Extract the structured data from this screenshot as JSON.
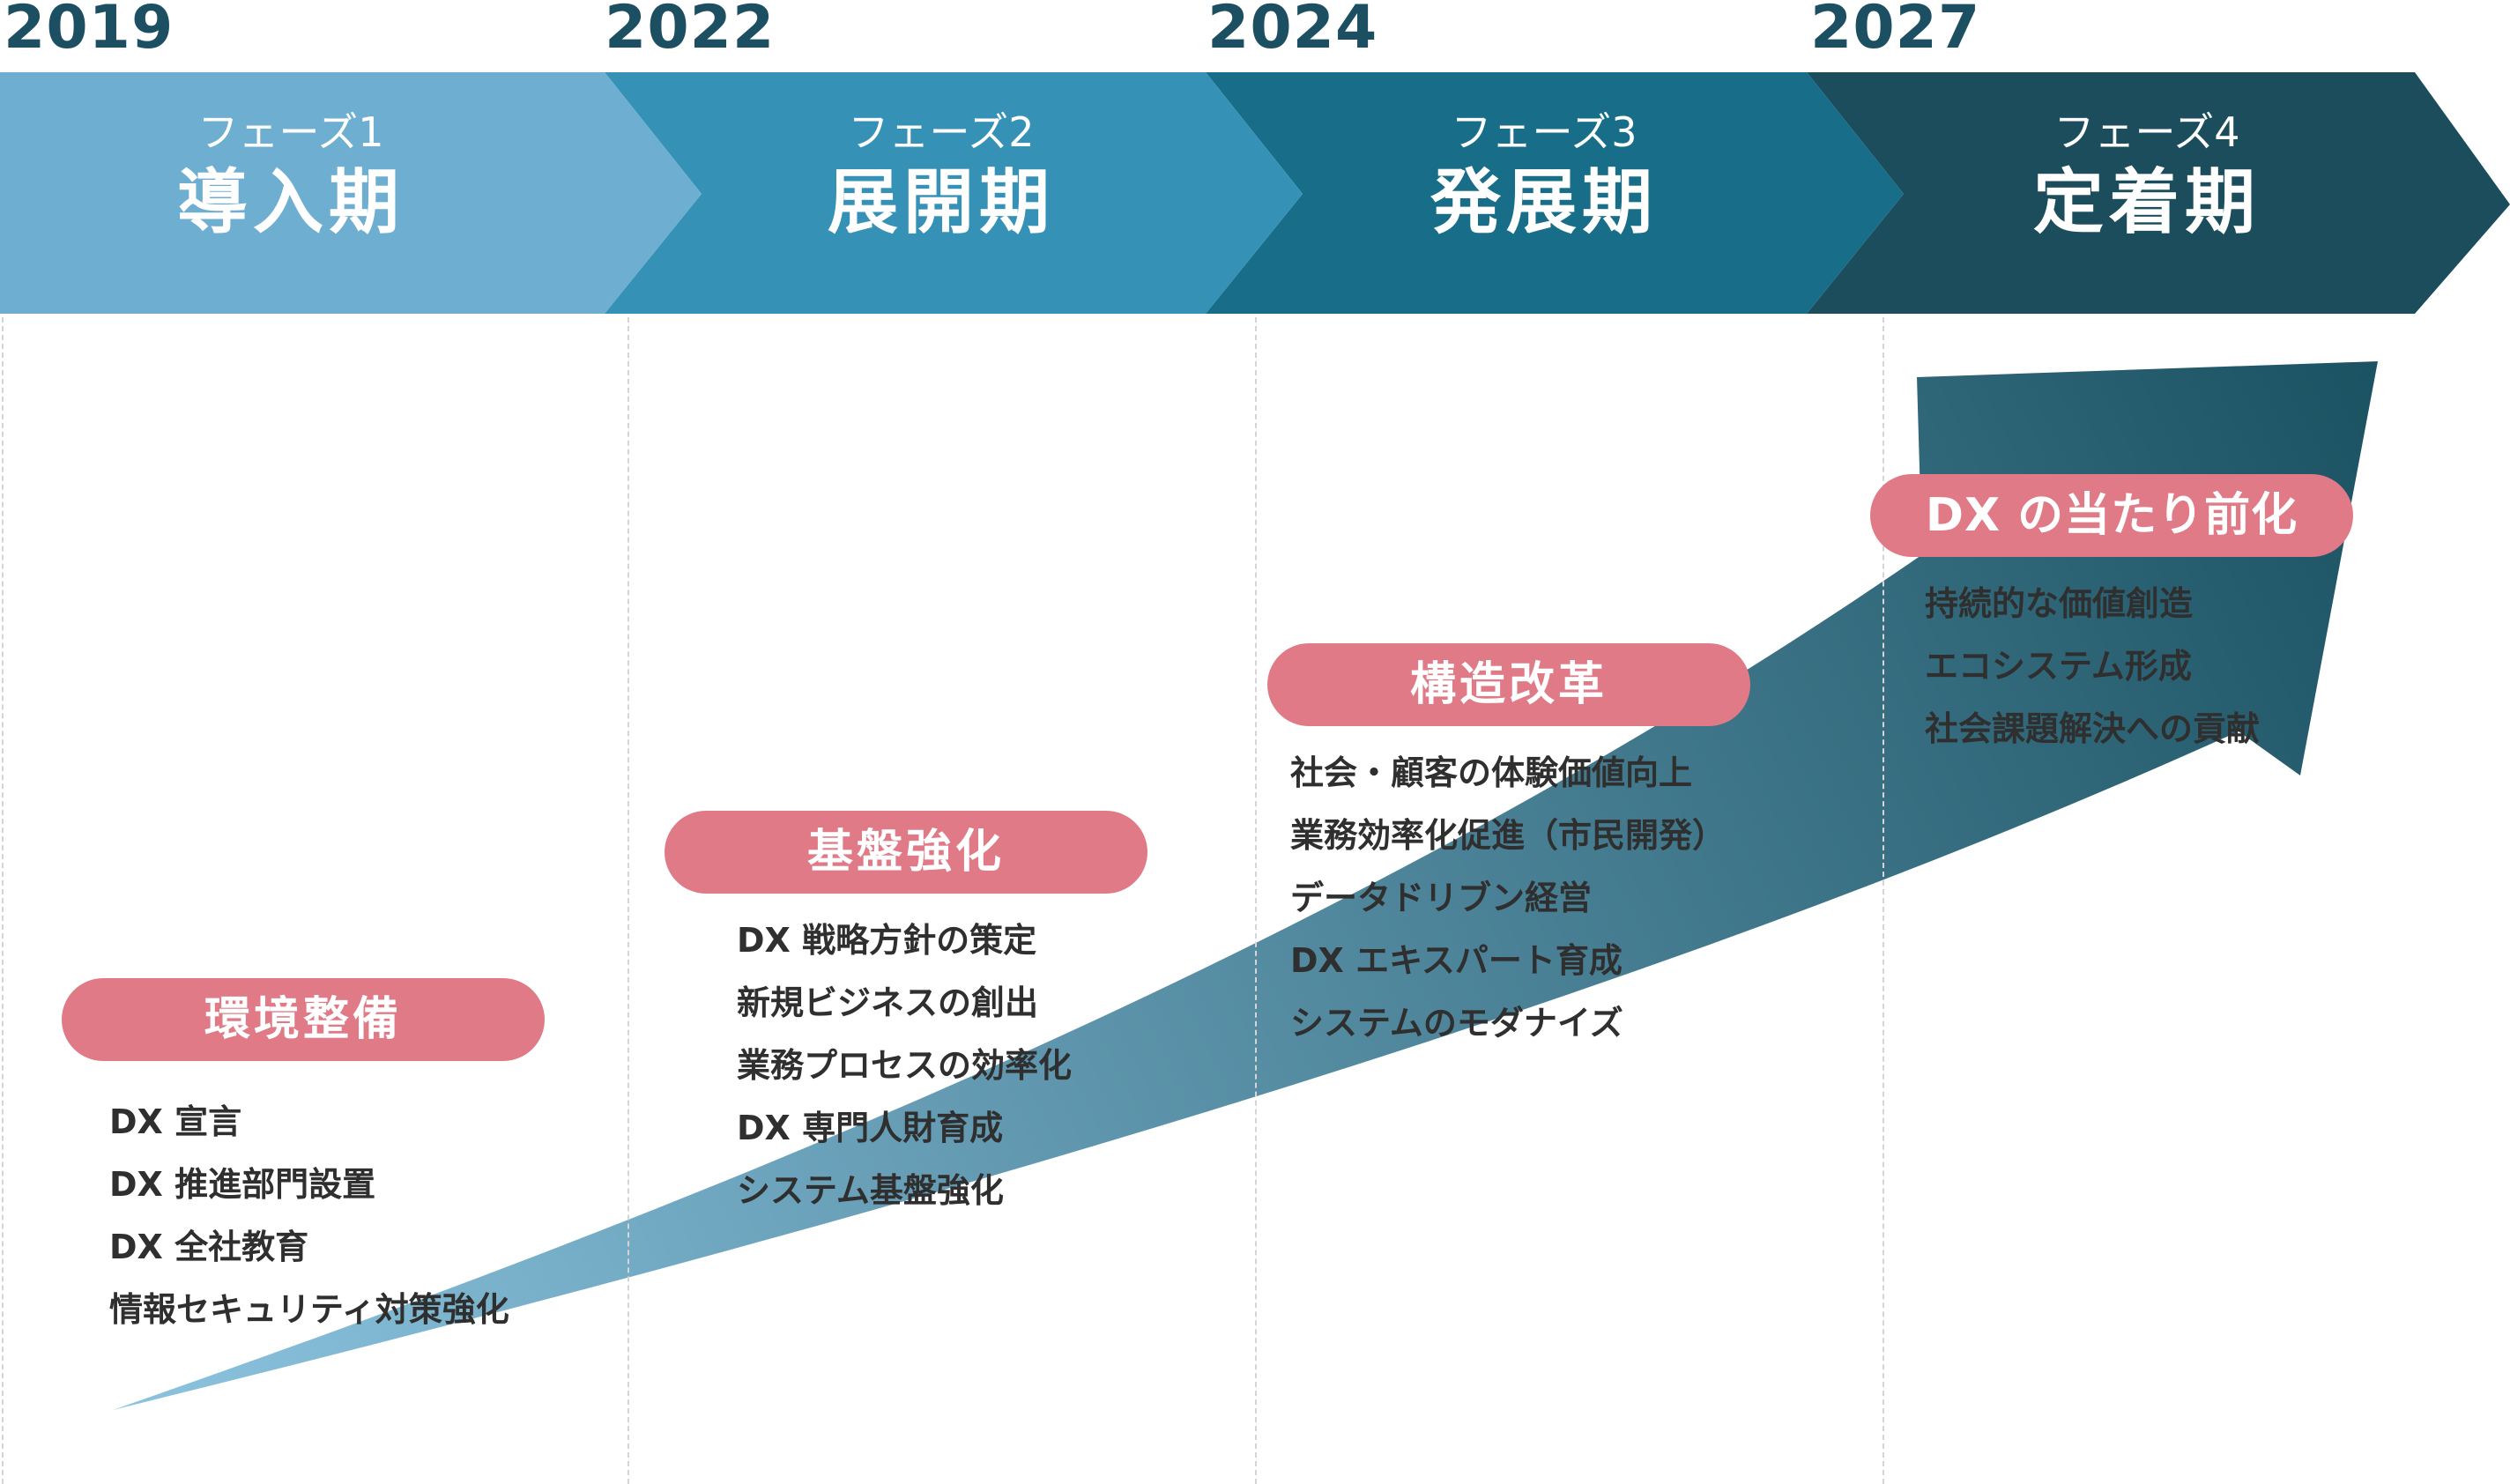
{
  "years": [
    "2019",
    "2022",
    "2024",
    "2027"
  ],
  "phases": [
    {
      "label": "フェーズ1",
      "title": "導入期",
      "color": "#6eaed0",
      "goal": "環境整備",
      "items": [
        "DX 宣言",
        "DX 推進部門設置",
        "DX 全社教育",
        "情報セキュリティ対策強化"
      ]
    },
    {
      "label": "フェーズ2",
      "title": "展開期",
      "color": "#3592b6",
      "goal": "基盤強化",
      "items": [
        "DX 戦略方針の策定",
        "新規ビジネスの創出",
        "業務プロセスの効率化",
        "DX 専門人財育成",
        "システム基盤強化"
      ]
    },
    {
      "label": "フェーズ3",
      "title": "発展期",
      "color": "#186e88",
      "goal": "構造改革",
      "items": [
        "社会・顧客の体験価値向上",
        "業務効率化促進（市民開発）",
        "データドリブン経営",
        "DX エキスパート育成",
        "システムのモダナイズ"
      ]
    },
    {
      "label": "フェーズ4",
      "title": "定着期",
      "color": "#1b4d5c",
      "goal": "DX の当たり前化",
      "items": [
        "持続的な価値創造",
        "エコシステム形成",
        "社会課題解決への貢献"
      ]
    }
  ],
  "colors": {
    "year_text": "#1d4f63",
    "goal_pill": "#df7a86",
    "arrow_start": "#8cc3df",
    "arrow_end": "#1b5262"
  }
}
